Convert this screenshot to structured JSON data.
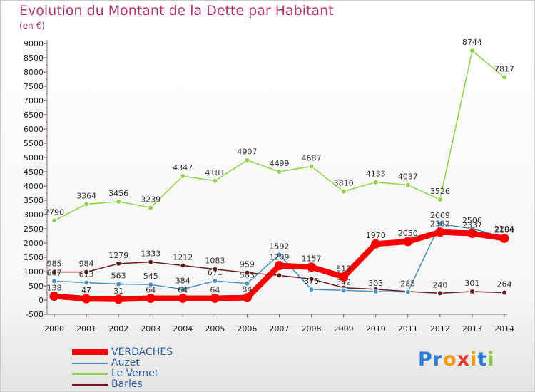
{
  "title": "Evolution du Montant de la Dette par Habitant",
  "unit": "(en €)",
  "logo": {
    "text": "Proxiti",
    "letters": [
      "P",
      "r",
      "o",
      "x",
      "i",
      "t",
      "i"
    ],
    "colors": [
      "#2a7fd4",
      "#2a7fd4",
      "#f39c12",
      "#e23c2b",
      "#f39c12",
      "#2a7fd4",
      "#8cc63f"
    ]
  },
  "chart_data": {
    "type": "line",
    "categories": [
      "2000",
      "2001",
      "2002",
      "2003",
      "2004",
      "2005",
      "2006",
      "2007",
      "2008",
      "2009",
      "2010",
      "2011",
      "2012",
      "2013",
      "2014"
    ],
    "y_ticks": [
      "-500",
      "0",
      "500",
      "1000",
      "1500",
      "2000",
      "2500",
      "3000",
      "3500",
      "4000",
      "4500",
      "5000",
      "5500",
      "6000",
      "6500",
      "7000",
      "7500",
      "8000",
      "8500",
      "9000"
    ],
    "ylim": [
      -500,
      9000
    ],
    "grid": false,
    "legend_position": "bottom-left",
    "series": [
      {
        "name": "Barles",
        "color": "#6b1a1a",
        "values": [
          985,
          984,
          1279,
          1333,
          1212,
          1083,
          959,
          865,
          742,
          435,
          379,
          303,
          240,
          301,
          264
        ],
        "labels": [
          "985",
          "984",
          "1279",
          "1333",
          "1212",
          "1083",
          "959",
          "",
          "",
          "",
          "",
          "",
          "240",
          "301",
          "264"
        ]
      },
      {
        "name": "Auzet",
        "color": "#4a90c8",
        "values": [
          667,
          613,
          563,
          545,
          384,
          671,
          583,
          1592,
          375,
          342,
          303,
          285,
          2669,
          2506,
          2204
        ],
        "labels": [
          "667",
          "613",
          "563",
          "545",
          "384",
          "671",
          "583",
          "1592",
          "375",
          "342",
          "303",
          "285",
          "2669",
          "2506",
          "2204"
        ]
      },
      {
        "name": "Le Vernet",
        "color": "#8cd443",
        "values": [
          2790,
          3364,
          3456,
          3239,
          4347,
          4181,
          4907,
          4499,
          4687,
          3810,
          4133,
          4037,
          3526,
          8744,
          7817
        ],
        "labels": [
          "2790",
          "3364",
          "3456",
          "3239",
          "4347",
          "4181",
          "4907",
          "4499",
          "4687",
          "3810",
          "4133",
          "4037",
          "3526",
          "8744",
          "7817"
        ]
      },
      {
        "name": "VERDACHES",
        "color": "#f70000",
        "values": [
          138,
          47,
          31,
          64,
          64,
          64,
          84,
          1209,
          1157,
          813,
          1970,
          2050,
          2382,
          2337,
          2164
        ],
        "labels": [
          "138",
          "47",
          "31",
          "64",
          "64",
          "64",
          "84",
          "1209",
          "1157",
          "813",
          "1970",
          "2050",
          "2382",
          "2337",
          "2164"
        ]
      }
    ],
    "legend": [
      "VERDACHES",
      "Auzet",
      "Le Vernet",
      "Barles"
    ]
  }
}
